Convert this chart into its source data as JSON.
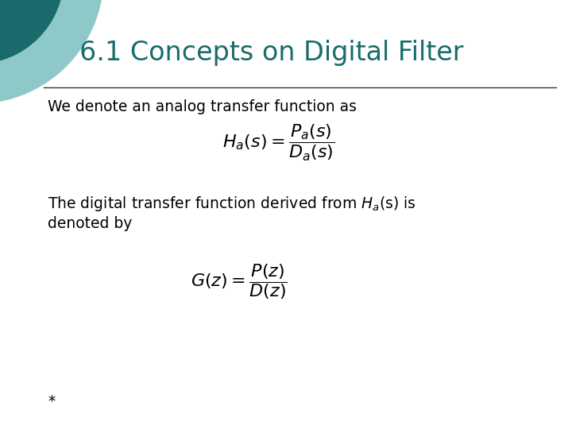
{
  "title": "6.1 Concepts on Digital Filter",
  "title_color": "#1a6b6b",
  "title_fontsize": 24,
  "background_color": "#ffffff",
  "line_color": "#333333",
  "text_color": "#000000",
  "body_fontsize": 13.5,
  "text1": "We denote an analog transfer function as",
  "formula1": "$H_a(s)=\\dfrac{P_a(s)}{D_a(s)}$",
  "text2_line1": "The digital transfer function derived from $H_a$(s) is",
  "text2_line2": "denoted by",
  "formula2": "$G(z)=\\dfrac{P(z)}{D(z)}$",
  "footnote": "*",
  "circle_color1": "#1a6b6b",
  "circle_color2": "#8ec8c8",
  "formula_fontsize": 16
}
